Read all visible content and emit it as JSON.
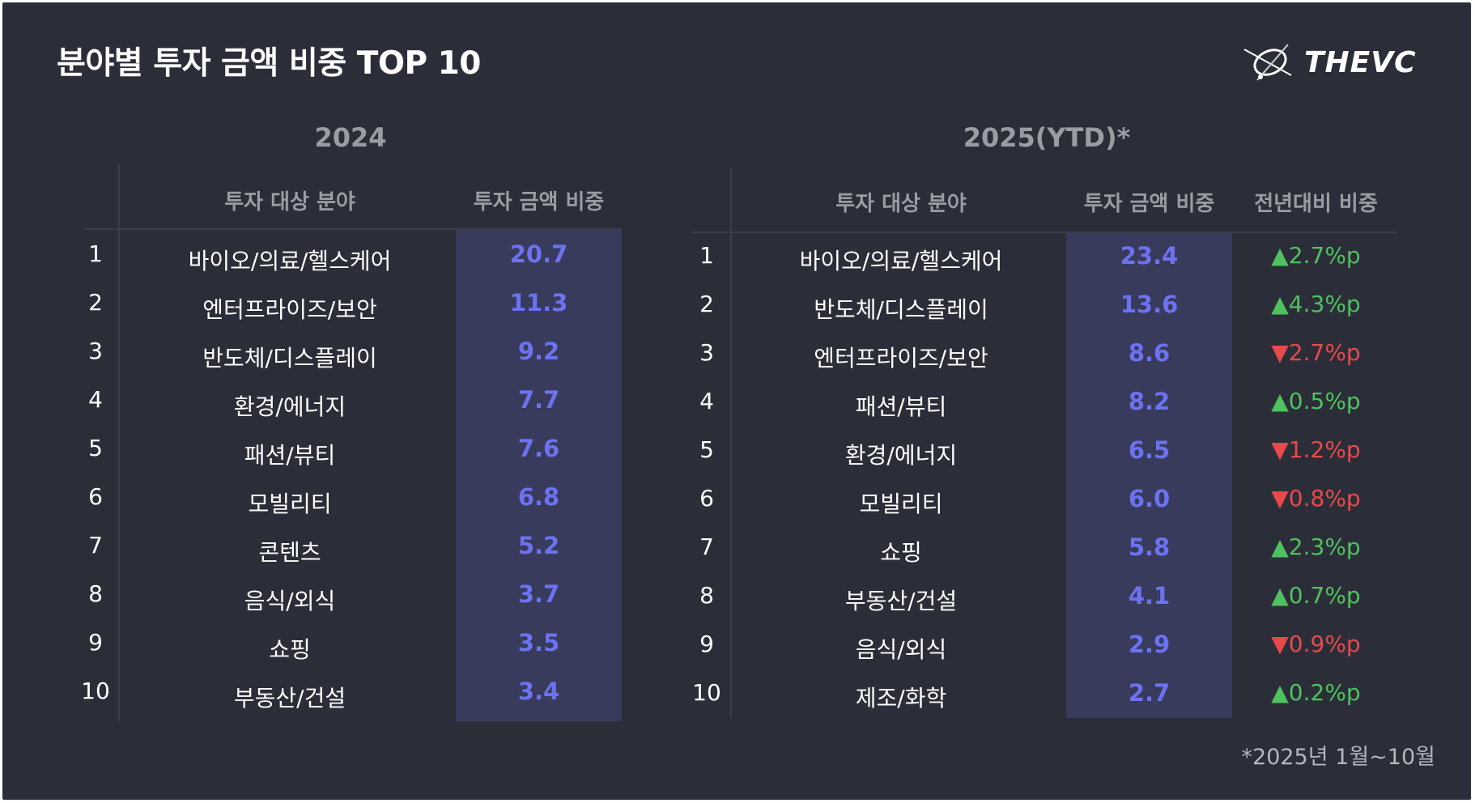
{
  "title": "분야별 투자 금액 비중 TOP 10",
  "logo": {
    "text": "THEVC"
  },
  "footnote": "*2025년 1월~10월",
  "colors": {
    "background": "#2b2e38",
    "value": "#6c72f0",
    "highlight": "#383b5c",
    "up": "#4fc15e",
    "down": "#e8494b"
  },
  "chart_data": [
    {
      "type": "table",
      "title": "2024",
      "columns": [
        "투자 대상 분야",
        "투자 금액 비중"
      ],
      "rows": [
        {
          "rank": "1",
          "category": "바이오/의료/헬스케어",
          "share": "20.7"
        },
        {
          "rank": "2",
          "category": "엔터프라이즈/보안",
          "share": "11.3"
        },
        {
          "rank": "3",
          "category": "반도체/디스플레이",
          "share": "9.2"
        },
        {
          "rank": "4",
          "category": "환경/에너지",
          "share": "7.7"
        },
        {
          "rank": "5",
          "category": "패션/뷰티",
          "share": "7.6"
        },
        {
          "rank": "6",
          "category": "모빌리티",
          "share": "6.8"
        },
        {
          "rank": "7",
          "category": "콘텐츠",
          "share": "5.2"
        },
        {
          "rank": "8",
          "category": "음식/외식",
          "share": "3.7"
        },
        {
          "rank": "9",
          "category": "쇼핑",
          "share": "3.5"
        },
        {
          "rank": "10",
          "category": "부동산/건설",
          "share": "3.4"
        }
      ]
    },
    {
      "type": "table",
      "title": "2025(YTD)*",
      "columns": [
        "투자 대상 분야",
        "투자 금액 비중",
        "전년대비 비중"
      ],
      "rows": [
        {
          "rank": "1",
          "category": "바이오/의료/헬스케어",
          "share": "23.4",
          "change": "▲2.7%p",
          "dir": "up"
        },
        {
          "rank": "2",
          "category": "반도체/디스플레이",
          "share": "13.6",
          "change": "▲4.3%p",
          "dir": "up"
        },
        {
          "rank": "3",
          "category": "엔터프라이즈/보안",
          "share": "8.6",
          "change": "▼2.7%p",
          "dir": "down"
        },
        {
          "rank": "4",
          "category": "패션/뷰티",
          "share": "8.2",
          "change": "▲0.5%p",
          "dir": "up"
        },
        {
          "rank": "5",
          "category": "환경/에너지",
          "share": "6.5",
          "change": "▼1.2%p",
          "dir": "down"
        },
        {
          "rank": "6",
          "category": "모빌리티",
          "share": "6.0",
          "change": "▼0.8%p",
          "dir": "down"
        },
        {
          "rank": "7",
          "category": "쇼핑",
          "share": "5.8",
          "change": "▲2.3%p",
          "dir": "up"
        },
        {
          "rank": "8",
          "category": "부동산/건설",
          "share": "4.1",
          "change": "▲0.7%p",
          "dir": "up"
        },
        {
          "rank": "9",
          "category": "음식/외식",
          "share": "2.9",
          "change": "▼0.9%p",
          "dir": "down"
        },
        {
          "rank": "10",
          "category": "제조/화학",
          "share": "2.7",
          "change": "▲0.2%p",
          "dir": "up"
        }
      ]
    }
  ]
}
